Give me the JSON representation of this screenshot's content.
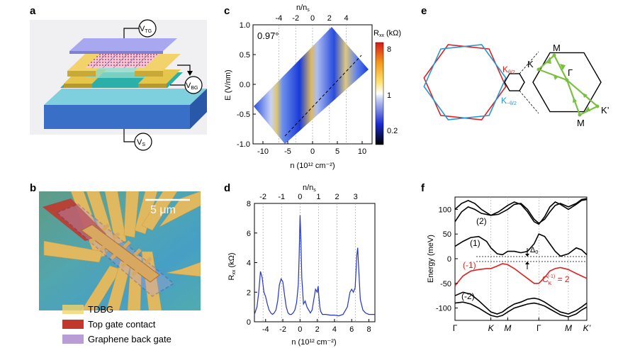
{
  "panel_labels": {
    "a": "a",
    "b": "b",
    "c": "c",
    "d": "d",
    "e": "e",
    "f": "f"
  },
  "colors": {
    "red": "#e02020",
    "blue": "#1f9ad6",
    "green": "#7cc043",
    "curve_blue": "#2233cc",
    "tdbg": "#f2d36b",
    "top_gate": "#c0392b",
    "back_gate": "#b79fd6"
  },
  "panel_a": {
    "v_tg": {
      "main": "V",
      "sub": "TG"
    },
    "v_bg": {
      "main": "V",
      "sub": "BG"
    },
    "v_s": {
      "main": "V",
      "sub": "S"
    }
  },
  "panel_b": {
    "scale_bar": "5 μm",
    "legend": [
      {
        "label": "TDBG",
        "color": "#f2d36b"
      },
      {
        "label": "Top gate contact",
        "color": "#c0392b"
      },
      {
        "label": "Graphene back gate",
        "color": "#b79fd6"
      }
    ]
  },
  "panel_c": {
    "angle": "0.97°",
    "colorbar": {
      "title": "R",
      "title_sub": "xx",
      "title_unit": " (kΩ)",
      "ticks": [
        "8",
        "1",
        "0.2"
      ]
    }
  },
  "panel_e": {
    "labels": {
      "K": "K",
      "M_top": "M",
      "Gamma": "Γ",
      "K_prime": "K’",
      "M_bottom": "M"
    },
    "k_red": {
      "main": "K",
      "sub": "θ/2"
    },
    "k_blue": {
      "main": "K",
      "sub": "−θ/2"
    }
  },
  "panel_f": {
    "ylabel": "Energy (meV)",
    "band_labels": {
      "b2": "(2)",
      "b1": "(1)",
      "bm1": "(-1)",
      "bm2": "(-2)"
    },
    "delta": {
      "main": "Δ",
      "sub": "0"
    },
    "chern": {
      "main": "C",
      "sub": "K",
      "sup": "(-1)",
      "rest": " = 2"
    }
  },
  "chart_data": [
    {
      "id": "c",
      "type": "heatmap",
      "title": "",
      "xlabel": "n (10¹² cm⁻²)",
      "ylabel": "E (V/nm)",
      "top_xlabel": "n/n",
      "top_xlabel_sub": "s",
      "xlim": [
        -12,
        12
      ],
      "ylim": [
        -1.0,
        1.0
      ],
      "xticks": [
        -10,
        -5,
        0,
        5,
        10
      ],
      "yticks": [
        "1.0",
        "0.5",
        "0.0",
        "-0.5",
        "-1.0"
      ],
      "yticks_values": [
        1.0,
        0.5,
        0.0,
        -0.5,
        -1.0
      ],
      "top_ticks": [
        -4,
        -2,
        0,
        2,
        4
      ],
      "top_ticks_n": [
        -6.8,
        -3.4,
        0,
        3.4,
        6.8
      ],
      "data_extent": {
        "x_min_at_bottom": [
          -5.5,
          2.5
        ],
        "x_max_at_top": [
          2.5,
          10.5
        ]
      },
      "colorscale_kohm": [
        0.2,
        1,
        8
      ]
    },
    {
      "id": "d",
      "type": "line",
      "title": "",
      "xlabel": "n (10¹² cm⁻²)",
      "ylabel": "R",
      "ylabel_sub": "xx",
      "ylabel_unit": " (kΩ)",
      "top_xlabel": "n/n",
      "top_xlabel_sub": "s",
      "xlim": [
        -5.3,
        8.7
      ],
      "ylim": [
        0,
        8
      ],
      "xticks": [
        -4,
        -2,
        0,
        2,
        4,
        6,
        8
      ],
      "yticks": [
        0,
        2,
        4,
        6,
        8
      ],
      "top_ticks": [
        -2,
        -1,
        0,
        1,
        2,
        3
      ],
      "top_ticks_n": [
        -4.3,
        -2.15,
        0,
        2.15,
        4.3,
        6.45
      ],
      "series": [
        {
          "name": "Rxx",
          "x": [
            -5.3,
            -5.0,
            -4.8,
            -4.6,
            -4.4,
            -4.2,
            -4.0,
            -3.8,
            -3.6,
            -3.4,
            -3.2,
            -3.0,
            -2.8,
            -2.6,
            -2.4,
            -2.2,
            -2.0,
            -1.8,
            -1.6,
            -1.4,
            -1.2,
            -1.0,
            -0.8,
            -0.6,
            -0.4,
            -0.2,
            -0.1,
            0.0,
            0.1,
            0.2,
            0.4,
            0.6,
            0.8,
            1.0,
            1.2,
            1.4,
            1.6,
            1.8,
            2.0,
            2.1,
            2.2,
            2.3,
            2.4,
            2.6,
            2.8,
            3.0,
            3.5,
            4.0,
            4.5,
            5.0,
            5.5,
            5.8,
            6.0,
            6.2,
            6.4,
            6.6,
            6.7,
            6.8,
            7.0,
            7.3,
            7.6,
            8.0,
            8.4,
            8.7
          ],
          "values": [
            0.5,
            1.0,
            2.0,
            3.4,
            3.0,
            2.0,
            1.7,
            1.2,
            0.8,
            0.6,
            0.5,
            0.6,
            0.8,
            1.4,
            2.5,
            2.9,
            2.7,
            1.8,
            1.0,
            0.6,
            0.5,
            0.5,
            0.6,
            0.8,
            1.3,
            2.5,
            4.5,
            7.2,
            5.5,
            3.0,
            1.2,
            1.4,
            1.0,
            0.8,
            0.6,
            0.8,
            1.5,
            2.2,
            2.0,
            2.4,
            1.6,
            1.0,
            0.7,
            0.5,
            0.5,
            0.5,
            0.45,
            0.45,
            0.4,
            0.5,
            1.0,
            2.0,
            2.2,
            2.0,
            2.3,
            4.5,
            5.0,
            3.8,
            1.5,
            0.8,
            0.6,
            0.5,
            0.5,
            0.5
          ]
        }
      ]
    },
    {
      "id": "f",
      "type": "line",
      "title": "",
      "xlabel": "",
      "ylabel": "Energy (meV)",
      "ylim": [
        -125,
        125
      ],
      "yticks": [
        100,
        50,
        0,
        -50,
        -100
      ],
      "x_tick_labels": [
        "Γ",
        "K",
        "M",
        "Γ",
        "M",
        "K’"
      ],
      "x_tick_positions": [
        0,
        0.272,
        0.4,
        0.636,
        0.86,
        1.0
      ],
      "series": [
        {
          "name": "band (2) a",
          "color": "#000000",
          "x": [
            0.0,
            0.05,
            0.1,
            0.15,
            0.2,
            0.272,
            0.33,
            0.4,
            0.45,
            0.5,
            0.55,
            0.6,
            0.636,
            0.68,
            0.72,
            0.76,
            0.8,
            0.86,
            0.92,
            0.96,
            1.0
          ],
          "values": [
            100,
            112,
            118,
            112,
            100,
            88,
            95,
            108,
            115,
            110,
            95,
            75,
            70,
            85,
            105,
            115,
            110,
            100,
            110,
            118,
            120
          ]
        },
        {
          "name": "band (2) b",
          "color": "#000000",
          "x": [
            0.0,
            0.05,
            0.1,
            0.15,
            0.2,
            0.272,
            0.33,
            0.4,
            0.45,
            0.5,
            0.55,
            0.6,
            0.636,
            0.68,
            0.72,
            0.76,
            0.8,
            0.86,
            0.92,
            0.96,
            1.0
          ],
          "values": [
            75,
            95,
            105,
            100,
            92,
            88,
            90,
            100,
            110,
            112,
            100,
            80,
            72,
            80,
            95,
            108,
            112,
            105,
            112,
            120,
            122
          ]
        },
        {
          "name": "band (1)",
          "color": "#000000",
          "x": [
            0.0,
            0.06,
            0.12,
            0.18,
            0.24,
            0.272,
            0.32,
            0.36,
            0.4,
            0.45,
            0.5,
            0.55,
            0.6,
            0.636,
            0.68,
            0.72,
            0.76,
            0.8,
            0.86,
            0.92,
            0.96,
            1.0
          ],
          "values": [
            25,
            35,
            43,
            45,
            35,
            22,
            10,
            8,
            15,
            15,
            12,
            15,
            30,
            50,
            45,
            30,
            15,
            5,
            10,
            22,
            18,
            8
          ]
        },
        {
          "name": "band (-1)",
          "color": "#e02020",
          "x": [
            0.0,
            0.06,
            0.12,
            0.18,
            0.24,
            0.272,
            0.32,
            0.36,
            0.4,
            0.45,
            0.5,
            0.55,
            0.6,
            0.636,
            0.68,
            0.72,
            0.76,
            0.8,
            0.86,
            0.92,
            0.96,
            1.0
          ],
          "values": [
            -55,
            -35,
            -25,
            -22,
            -20,
            -20,
            -15,
            -10,
            -12,
            -20,
            -30,
            -40,
            -50,
            -50,
            -38,
            -25,
            -20,
            -18,
            -22,
            -30,
            -35,
            -40
          ]
        },
        {
          "name": "band (-2) a",
          "color": "#000000",
          "x": [
            0.0,
            0.06,
            0.12,
            0.18,
            0.24,
            0.272,
            0.32,
            0.36,
            0.4,
            0.45,
            0.5,
            0.55,
            0.6,
            0.636,
            0.68,
            0.72,
            0.76,
            0.8,
            0.86,
            0.92,
            0.96,
            1.0
          ],
          "values": [
            -75,
            -68,
            -72,
            -85,
            -100,
            -108,
            -112,
            -108,
            -100,
            -92,
            -88,
            -82,
            -80,
            -82,
            -88,
            -95,
            -102,
            -108,
            -112,
            -105,
            -98,
            -90
          ]
        },
        {
          "name": "band (-2) b",
          "color": "#000000",
          "x": [
            0.0,
            0.06,
            0.12,
            0.18,
            0.24,
            0.272,
            0.32,
            0.36,
            0.4,
            0.45,
            0.5,
            0.55,
            0.6,
            0.636,
            0.68,
            0.72,
            0.76,
            0.8,
            0.86,
            0.92,
            0.96,
            1.0
          ],
          "values": [
            -90,
            -88,
            -92,
            -100,
            -110,
            -115,
            -118,
            -115,
            -108,
            -100,
            -96,
            -92,
            -90,
            -92,
            -96,
            -102,
            -108,
            -114,
            -118,
            -112,
            -104,
            -98
          ]
        }
      ]
    }
  ]
}
